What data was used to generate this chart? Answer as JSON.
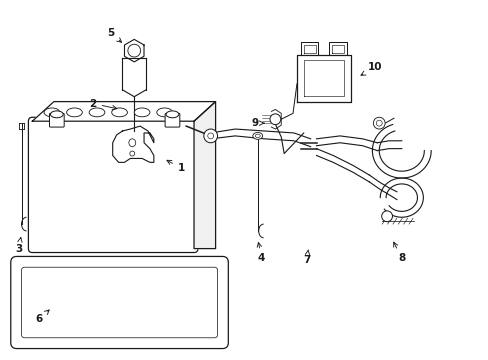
{
  "background_color": "#ffffff",
  "line_color": "#1a1a1a",
  "fig_width": 4.89,
  "fig_height": 3.6,
  "dpi": 100,
  "label_positions": {
    "1": [
      1.72,
      2.02,
      1.85,
      1.95
    ],
    "2": [
      1.08,
      2.58,
      0.92,
      2.58
    ],
    "3": [
      0.18,
      1.18,
      0.25,
      1.3
    ],
    "4": [
      2.62,
      1.05,
      2.58,
      1.18
    ],
    "5": [
      1.18,
      3.32,
      1.32,
      3.22
    ],
    "6": [
      0.38,
      0.42,
      0.52,
      0.52
    ],
    "7": [
      3.12,
      1.02,
      3.12,
      1.18
    ],
    "8": [
      4.02,
      1.05,
      3.9,
      1.22
    ],
    "9": [
      2.68,
      2.38,
      2.82,
      2.38
    ],
    "10": [
      3.75,
      2.95,
      3.6,
      2.85
    ]
  }
}
